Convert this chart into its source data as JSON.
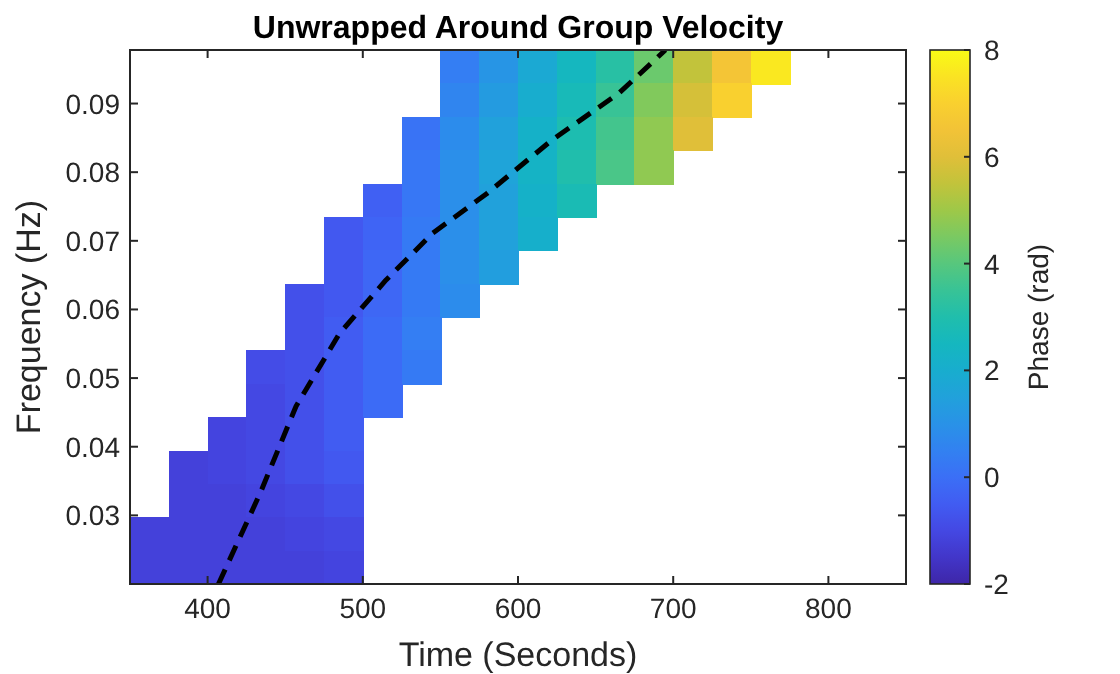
{
  "chart_data": {
    "type": "heatmap",
    "title": "Unwrapped Around Group Velocity",
    "xlabel": "Time (Seconds)",
    "ylabel": "Frequency (Hz)",
    "clabel": "Phase (rad)",
    "xlim": [
      350,
      850
    ],
    "ylim": [
      0.02,
      0.0978
    ],
    "xticks": [
      400,
      500,
      600,
      700,
      800
    ],
    "yticks": [
      0.03,
      0.04,
      0.05,
      0.06,
      0.07,
      0.08,
      0.09
    ],
    "clim": [
      -2,
      8
    ],
    "cticks": [
      -2,
      0,
      2,
      4,
      6,
      8
    ],
    "x": [
      362.5,
      387.5,
      412.5,
      437.5,
      462.5,
      487.5,
      512.5,
      537.5,
      562.5,
      587.5,
      612.5,
      637.5,
      662.5,
      687.5,
      712.5,
      737.5,
      762.5
    ],
    "cells": [
      [
        null,
        null,
        null,
        null,
        null,
        null,
        null,
        null,
        0.4,
        1.1,
        1.8,
        2.5,
        3.2,
        4.3,
        5.5,
        6.6,
        7.6
      ],
      [
        null,
        null,
        null,
        null,
        null,
        null,
        null,
        null,
        0.6,
        1.3,
        2.0,
        2.7,
        3.5,
        4.6,
        5.8,
        7.0,
        null
      ],
      [
        null,
        null,
        null,
        null,
        null,
        null,
        null,
        0.1,
        0.8,
        1.5,
        2.2,
        2.9,
        3.7,
        4.8,
        6.0,
        null,
        null
      ],
      [
        null,
        null,
        null,
        null,
        null,
        null,
        null,
        0.2,
        0.9,
        1.6,
        2.3,
        3.0,
        3.8,
        4.8,
        null,
        null,
        null
      ],
      [
        null,
        null,
        null,
        null,
        null,
        null,
        -0.4,
        0.2,
        0.9,
        1.5,
        2.2,
        2.8,
        null,
        null,
        null,
        null,
        null
      ],
      [
        null,
        null,
        null,
        null,
        null,
        -0.6,
        -0.3,
        0.3,
        0.9,
        1.5,
        2.1,
        null,
        null,
        null,
        null,
        null,
        null
      ],
      [
        null,
        null,
        null,
        null,
        null,
        -0.6,
        -0.2,
        0.3,
        0.9,
        1.4,
        null,
        null,
        null,
        null,
        null,
        null,
        null
      ],
      [
        null,
        null,
        null,
        null,
        -0.8,
        -0.6,
        -0.2,
        0.3,
        0.8,
        null,
        null,
        null,
        null,
        null,
        null,
        null,
        null
      ],
      [
        null,
        null,
        null,
        null,
        -0.8,
        -0.5,
        -0.1,
        0.4,
        null,
        null,
        null,
        null,
        null,
        null,
        null,
        null,
        null
      ],
      [
        null,
        null,
        null,
        -0.9,
        -0.8,
        -0.5,
        -0.1,
        0.3,
        null,
        null,
        null,
        null,
        null,
        null,
        null,
        null,
        null
      ],
      [
        null,
        null,
        null,
        -1.0,
        -0.8,
        -0.5,
        -0.1,
        null,
        null,
        null,
        null,
        null,
        null,
        null,
        null,
        null,
        null
      ],
      [
        null,
        null,
        -1.1,
        -1.0,
        -0.8,
        -0.5,
        null,
        null,
        null,
        null,
        null,
        null,
        null,
        null,
        null,
        null,
        null
      ],
      [
        null,
        -1.2,
        -1.1,
        -1.0,
        -0.8,
        -0.6,
        null,
        null,
        null,
        null,
        null,
        null,
        null,
        null,
        null,
        null,
        null
      ],
      [
        null,
        -1.2,
        -1.2,
        -1.1,
        -1.0,
        -0.8,
        null,
        null,
        null,
        null,
        null,
        null,
        null,
        null,
        null,
        null,
        null
      ],
      [
        -1.2,
        -1.2,
        -1.2,
        -1.2,
        -1.1,
        -1.0,
        null,
        null,
        null,
        null,
        null,
        null,
        null,
        null,
        null,
        null,
        null
      ],
      [
        -1.2,
        -1.2,
        -1.2,
        -1.2,
        -1.2,
        -1.1,
        null,
        null,
        null,
        null,
        null,
        null,
        null,
        null,
        null,
        null,
        null
      ]
    ],
    "series": [
      {
        "type": "line",
        "color": "#000000",
        "line_style": "dashed",
        "x": [
          407,
          434,
          457,
          485,
          515,
          545,
          580,
          622,
          665,
          695
        ],
        "values": [
          0.02,
          0.0333,
          0.0459,
          0.0565,
          0.0643,
          0.0711,
          0.0769,
          0.0847,
          0.0915,
          0.0978
        ]
      }
    ]
  }
}
